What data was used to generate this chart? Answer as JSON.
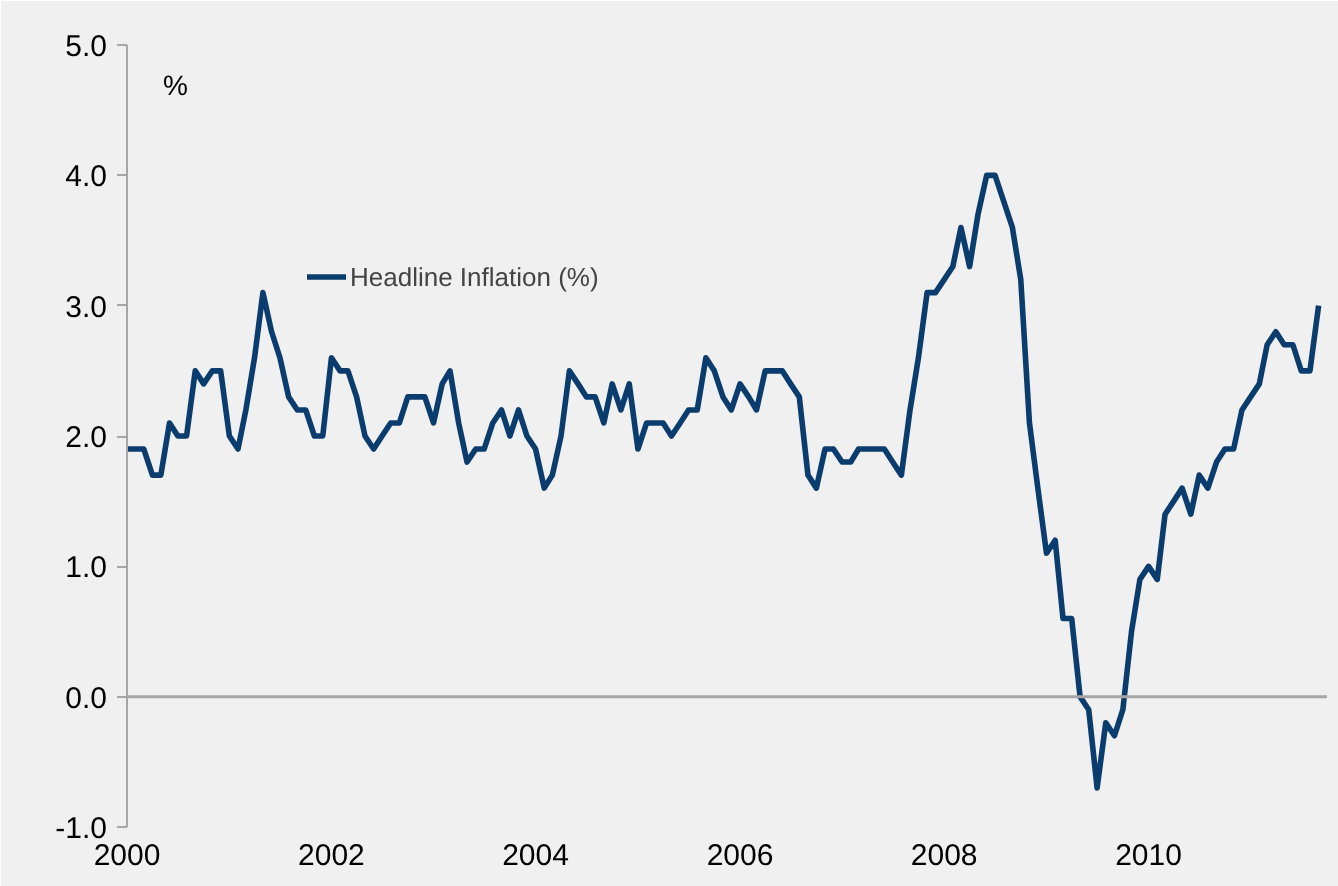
{
  "chart_data": {
    "type": "line",
    "ylabel": "%",
    "x": [
      "2000-01",
      "2000-02",
      "2000-03",
      "2000-04",
      "2000-05",
      "2000-06",
      "2000-07",
      "2000-08",
      "2000-09",
      "2000-10",
      "2000-11",
      "2000-12",
      "2001-01",
      "2001-02",
      "2001-03",
      "2001-04",
      "2001-05",
      "2001-06",
      "2001-07",
      "2001-08",
      "2001-09",
      "2001-10",
      "2001-11",
      "2001-12",
      "2002-01",
      "2002-02",
      "2002-03",
      "2002-04",
      "2002-05",
      "2002-06",
      "2002-07",
      "2002-08",
      "2002-09",
      "2002-10",
      "2002-11",
      "2002-12",
      "2003-01",
      "2003-02",
      "2003-03",
      "2003-04",
      "2003-05",
      "2003-06",
      "2003-07",
      "2003-08",
      "2003-09",
      "2003-10",
      "2003-11",
      "2003-12",
      "2004-01",
      "2004-02",
      "2004-03",
      "2004-04",
      "2004-05",
      "2004-06",
      "2004-07",
      "2004-08",
      "2004-09",
      "2004-10",
      "2004-11",
      "2004-12",
      "2005-01",
      "2005-02",
      "2005-03",
      "2005-04",
      "2005-05",
      "2005-06",
      "2005-07",
      "2005-08",
      "2005-09",
      "2005-10",
      "2005-11",
      "2005-12",
      "2006-01",
      "2006-02",
      "2006-03",
      "2006-04",
      "2006-05",
      "2006-06",
      "2006-07",
      "2006-08",
      "2006-09",
      "2006-10",
      "2006-11",
      "2006-12",
      "2007-01",
      "2007-02",
      "2007-03",
      "2007-04",
      "2007-05",
      "2007-06",
      "2007-07",
      "2007-08",
      "2007-09",
      "2007-10",
      "2007-11",
      "2007-12",
      "2008-01",
      "2008-02",
      "2008-03",
      "2008-04",
      "2008-05",
      "2008-06",
      "2008-07",
      "2008-08",
      "2008-09",
      "2008-10",
      "2008-11",
      "2008-12",
      "2009-01",
      "2009-02",
      "2009-03",
      "2009-04",
      "2009-05",
      "2009-06",
      "2009-07",
      "2009-08",
      "2009-09",
      "2009-10",
      "2009-11",
      "2009-12",
      "2010-01",
      "2010-02",
      "2010-03",
      "2010-04",
      "2010-05",
      "2010-06",
      "2010-07",
      "2010-08",
      "2010-09",
      "2010-10",
      "2010-11",
      "2010-12",
      "2011-01",
      "2011-02",
      "2011-03",
      "2011-04",
      "2011-05",
      "2011-06",
      "2011-07",
      "2011-08",
      "2011-09"
    ],
    "series": [
      {
        "name": "Headline Inflation (%)",
        "color": "#0b3c6e",
        "values": [
          1.9,
          1.9,
          1.9,
          1.7,
          1.7,
          2.1,
          2.0,
          2.0,
          2.5,
          2.4,
          2.5,
          2.5,
          2.0,
          1.9,
          2.2,
          2.6,
          3.1,
          2.8,
          2.6,
          2.3,
          2.2,
          2.2,
          2.0,
          2.0,
          2.6,
          2.5,
          2.5,
          2.3,
          2.0,
          1.9,
          2.0,
          2.1,
          2.1,
          2.3,
          2.3,
          2.3,
          2.1,
          2.4,
          2.5,
          2.1,
          1.8,
          1.9,
          1.9,
          2.1,
          2.2,
          2.0,
          2.2,
          2.0,
          1.9,
          1.6,
          1.7,
          2.0,
          2.5,
          2.4,
          2.3,
          2.3,
          2.1,
          2.4,
          2.2,
          2.4,
          1.9,
          2.1,
          2.1,
          2.1,
          2.0,
          2.1,
          2.2,
          2.2,
          2.6,
          2.5,
          2.3,
          2.2,
          2.4,
          2.3,
          2.2,
          2.5,
          2.5,
          2.5,
          2.4,
          2.3,
          1.7,
          1.6,
          1.9,
          1.9,
          1.8,
          1.8,
          1.9,
          1.9,
          1.9,
          1.9,
          1.8,
          1.7,
          2.2,
          2.6,
          3.1,
          3.1,
          3.2,
          3.3,
          3.6,
          3.3,
          3.7,
          4.0,
          4.0,
          3.8,
          3.6,
          3.2,
          2.1,
          1.6,
          1.1,
          1.2,
          0.6,
          0.6,
          0.0,
          -0.1,
          -0.7,
          -0.2,
          -0.3,
          -0.1,
          0.5,
          0.9,
          1.0,
          0.9,
          1.4,
          1.5,
          1.6,
          1.4,
          1.7,
          1.6,
          1.8,
          1.9,
          1.9,
          2.2,
          2.3,
          2.4,
          2.7,
          2.8,
          2.7,
          2.7,
          2.5,
          2.5,
          3.0
        ]
      }
    ],
    "xlim": [
      "2000-01",
      "2011-10"
    ],
    "xticks": [
      "2000",
      "2002",
      "2004",
      "2006",
      "2008",
      "2010"
    ],
    "ylim": [
      -1,
      5
    ],
    "yticks": [
      {
        "value": -1,
        "label": "-1.0"
      },
      {
        "value": 0,
        "label": "0.0"
      },
      {
        "value": 1,
        "label": "1.0"
      },
      {
        "value": 2,
        "label": "2.0"
      },
      {
        "value": 3,
        "label": "3.0"
      },
      {
        "value": 4,
        "label": "4.0"
      },
      {
        "value": 5,
        "label": "5.0"
      }
    ],
    "ref_lines": [
      {
        "axis": "y",
        "value": 0,
        "color": "#a6a6a6"
      }
    ],
    "legend": "top left",
    "grid": false
  }
}
